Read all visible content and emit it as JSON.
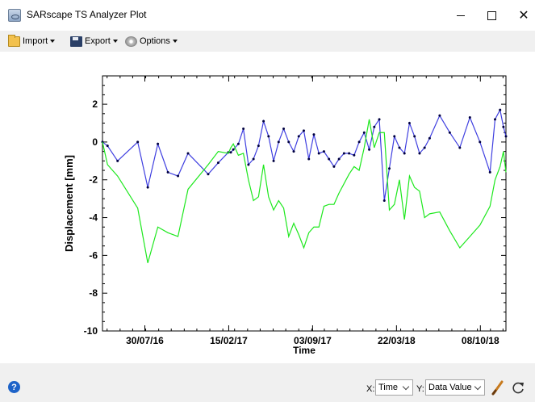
{
  "window": {
    "title": "SARscape TS Analyzer Plot",
    "app_icon": "sarscape-app-icon",
    "controls": [
      "minimize",
      "maximize",
      "close"
    ]
  },
  "toolbar": {
    "import_label": "Import",
    "export_label": "Export",
    "options_label": "Options"
  },
  "statusbar": {
    "x_label": "X:",
    "x_value": "Time",
    "y_label": "Y:",
    "y_value": "Data Value"
  },
  "colors": {
    "series_blue": "#3f3fe0",
    "series_green": "#1ee81e",
    "marker": "#000040"
  },
  "chart_data": {
    "type": "line",
    "xlabel": "Time",
    "ylabel": "Displacement [mm]",
    "x_ticks": [
      "30/07/16",
      "15/02/17",
      "03/09/17",
      "22/03/18",
      "08/10/18"
    ],
    "y_ticks": [
      2,
      0,
      -2,
      -4,
      -6,
      -8,
      -10
    ],
    "xlim": [
      "2016-04-20",
      "2018-12-08"
    ],
    "ylim": [
      -10,
      3.5
    ],
    "grid": false,
    "series": [
      {
        "color": "blue",
        "x": [
          "2016-04-20",
          "2016-05-02",
          "2016-05-26",
          "2016-07-13",
          "2016-08-06",
          "2016-08-30",
          "2016-09-23",
          "2016-10-17",
          "2016-11-10",
          "2016-12-28",
          "2017-01-21",
          "2017-02-14",
          "2017-02-20",
          "2017-02-26",
          "2017-03-10",
          "2017-03-22",
          "2017-04-03",
          "2017-04-15",
          "2017-04-27",
          "2017-05-09",
          "2017-05-21",
          "2017-06-02",
          "2017-06-14",
          "2017-06-26",
          "2017-07-08",
          "2017-07-20",
          "2017-08-01",
          "2017-08-13",
          "2017-08-25",
          "2017-09-06",
          "2017-09-18",
          "2017-09-30",
          "2017-10-12",
          "2017-10-24",
          "2017-11-05",
          "2017-11-17",
          "2017-11-29",
          "2017-12-11",
          "2017-12-23",
          "2018-01-04",
          "2018-01-16",
          "2018-01-28",
          "2018-02-09",
          "2018-02-21",
          "2018-03-05",
          "2018-03-17",
          "2018-03-29",
          "2018-04-10",
          "2018-04-22",
          "2018-05-04",
          "2018-05-16",
          "2018-05-28",
          "2018-06-09",
          "2018-07-03",
          "2018-07-27",
          "2018-08-20",
          "2018-09-13",
          "2018-10-07",
          "2018-10-31",
          "2018-11-12",
          "2018-11-24",
          "2018-12-02",
          "2018-12-08"
        ],
        "values": [
          0.0,
          -0.2,
          -1.0,
          0.0,
          -2.4,
          -0.1,
          -1.6,
          -1.8,
          -0.6,
          -1.7,
          -1.1,
          -0.55,
          -0.55,
          -0.4,
          -0.1,
          0.7,
          -1.2,
          -0.9,
          -0.2,
          1.1,
          0.3,
          -1.0,
          0.0,
          0.7,
          0.0,
          -0.5,
          0.3,
          0.6,
          -0.9,
          0.4,
          -0.6,
          -0.5,
          -0.9,
          -1.3,
          -0.9,
          -0.6,
          -0.6,
          -0.7,
          0.0,
          0.5,
          -0.4,
          0.8,
          1.2,
          -3.1,
          -1.4,
          0.3,
          -0.3,
          -0.6,
          1.0,
          0.3,
          -0.6,
          -0.3,
          0.2,
          1.4,
          0.5,
          -0.3,
          1.3,
          0.0,
          -1.6,
          1.2,
          1.7,
          0.8,
          0.3
        ]
      },
      {
        "color": "green",
        "x": [
          "2016-04-20",
          "2016-05-02",
          "2016-05-26",
          "2016-07-13",
          "2016-08-06",
          "2016-08-30",
          "2016-09-23",
          "2016-10-17",
          "2016-11-10",
          "2016-12-28",
          "2017-01-21",
          "2017-02-14",
          "2017-02-20",
          "2017-02-26",
          "2017-03-10",
          "2017-03-22",
          "2017-04-03",
          "2017-04-15",
          "2017-04-27",
          "2017-05-09",
          "2017-05-21",
          "2017-06-02",
          "2017-06-14",
          "2017-06-26",
          "2017-07-08",
          "2017-07-20",
          "2017-08-01",
          "2017-08-13",
          "2017-08-25",
          "2017-09-06",
          "2017-09-18",
          "2017-09-30",
          "2017-10-12",
          "2017-10-24",
          "2017-11-05",
          "2017-11-17",
          "2017-11-29",
          "2017-12-11",
          "2017-12-23",
          "2018-01-04",
          "2018-01-16",
          "2018-01-28",
          "2018-02-09",
          "2018-02-21",
          "2018-03-05",
          "2018-03-17",
          "2018-03-29",
          "2018-04-10",
          "2018-04-22",
          "2018-05-04",
          "2018-05-16",
          "2018-05-28",
          "2018-06-09",
          "2018-07-03",
          "2018-07-27",
          "2018-08-20",
          "2018-09-13",
          "2018-10-07",
          "2018-10-31",
          "2018-11-12",
          "2018-11-24",
          "2018-12-02",
          "2018-12-08"
        ],
        "values": [
          0.0,
          -1.2,
          -1.8,
          -3.5,
          -6.4,
          -4.5,
          -4.8,
          -5.0,
          -2.5,
          -1.2,
          -0.5,
          -0.6,
          -0.3,
          -0.1,
          -0.7,
          -0.6,
          -2.0,
          -3.1,
          -2.9,
          -1.2,
          -2.9,
          -3.6,
          -3.1,
          -3.5,
          -5.0,
          -4.3,
          -4.9,
          -5.6,
          -4.8,
          -4.5,
          -4.5,
          -3.4,
          -3.3,
          -3.3,
          -2.7,
          -2.2,
          -1.7,
          -1.3,
          -1.5,
          -0.3,
          1.2,
          -0.3,
          0.5,
          0.5,
          -3.6,
          -3.3,
          -2.0,
          -4.1,
          -1.8,
          -2.4,
          -2.6,
          -4.0,
          -3.8,
          -3.7,
          -4.7,
          -5.6,
          -5.0,
          -4.4,
          -3.4,
          -2.0,
          -1.3,
          -0.5,
          -1.6
        ]
      }
    ]
  }
}
